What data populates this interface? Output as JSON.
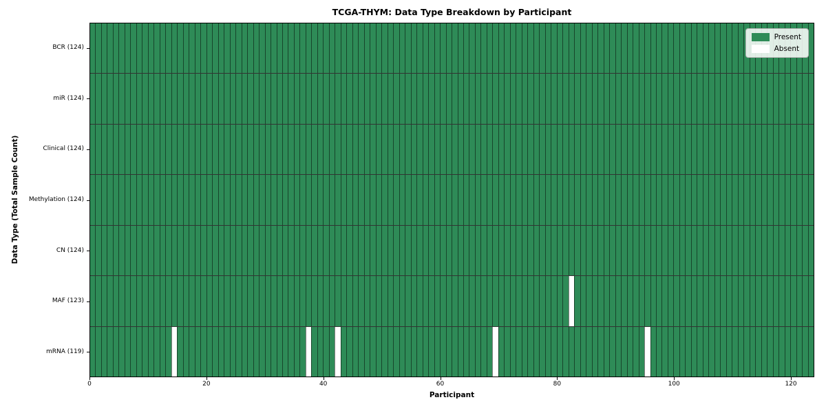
{
  "chart_data": {
    "type": "heatmap",
    "title": "TCGA-THYM: Data Type Breakdown by Participant",
    "xlabel": "Participant",
    "ylabel": "Data Type (Total Sample Count)",
    "xlim": [
      0,
      124
    ],
    "x_ticks": [
      0,
      20,
      40,
      60,
      80,
      100,
      120
    ],
    "n_participants": 124,
    "grid": "cell borders on, dark row separators",
    "rows": [
      {
        "label": "BCR (124)",
        "data_type": "BCR",
        "total_samples": 124,
        "absent_participant_indices": []
      },
      {
        "label": "miR (124)",
        "data_type": "miR",
        "total_samples": 124,
        "absent_participant_indices": []
      },
      {
        "label": "Clinical (124)",
        "data_type": "Clinical",
        "total_samples": 124,
        "absent_participant_indices": []
      },
      {
        "label": "Methylation (124)",
        "data_type": "Methylation",
        "total_samples": 124,
        "absent_participant_indices": []
      },
      {
        "label": "CN (124)",
        "data_type": "CN",
        "total_samples": 124,
        "absent_participant_indices": []
      },
      {
        "label": "MAF (123)",
        "data_type": "MAF",
        "total_samples": 123,
        "absent_participant_indices": [
          82
        ]
      },
      {
        "label": "mRNA (119)",
        "data_type": "mRNA",
        "total_samples": 119,
        "absent_participant_indices": [
          14,
          37,
          42,
          69,
          95
        ]
      }
    ],
    "legend": {
      "position": "upper right",
      "items": [
        {
          "label": "Present",
          "color": "#2e8b57"
        },
        {
          "label": "Absent",
          "color": "#ffffff"
        }
      ]
    },
    "colors": {
      "present": "#2e8b57",
      "absent": "#ffffff",
      "cell_edge": "#000000",
      "row_separator": "#000000",
      "background": "#ffffff"
    }
  }
}
